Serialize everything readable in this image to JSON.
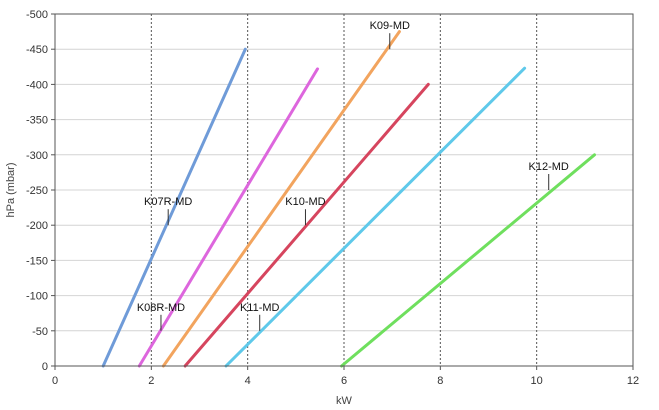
{
  "chart_data": {
    "type": "line",
    "title": "",
    "xlabel": "kW",
    "ylabel": "hPa (mbar)",
    "xlim": [
      0,
      12
    ],
    "ylim": [
      0,
      -500
    ],
    "x_ticks": [
      0,
      2,
      4,
      6,
      8,
      10,
      12
    ],
    "y_ticks": [
      0,
      -50,
      -100,
      -150,
      -200,
      -250,
      -300,
      -350,
      -400,
      -450,
      -500
    ],
    "grid": {
      "x": true,
      "y": true
    },
    "series": [
      {
        "name": "K07R-MD",
        "color": "#6f9bd8",
        "points": [
          [
            1.0,
            0
          ],
          [
            3.95,
            -450
          ]
        ],
        "label_at": [
          2.35,
          -200
        ],
        "label_pos": "above"
      },
      {
        "name": "K08R-MD",
        "color": "#dd66dd",
        "points": [
          [
            1.75,
            0
          ],
          [
            5.45,
            -422
          ]
        ],
        "label_at": [
          2.2,
          -50
        ],
        "label_pos": "above"
      },
      {
        "name": "K09-MD",
        "color": "#f2a45e",
        "points": [
          [
            2.25,
            0
          ],
          [
            7.15,
            -475
          ]
        ],
        "label_at": [
          6.95,
          -450
        ],
        "label_pos": "above"
      },
      {
        "name": "K10-MD",
        "color": "#d6455e",
        "points": [
          [
            2.7,
            0
          ],
          [
            7.75,
            -400
          ]
        ],
        "label_at": [
          5.2,
          -200
        ],
        "label_pos": "above"
      },
      {
        "name": "K11-MD",
        "color": "#5fc9ea",
        "points": [
          [
            3.55,
            0
          ],
          [
            9.75,
            -423
          ]
        ],
        "label_at": [
          4.25,
          -50
        ],
        "label_pos": "above"
      },
      {
        "name": "K12-MD",
        "color": "#6fdf5e",
        "points": [
          [
            5.95,
            0
          ],
          [
            11.2,
            -300
          ]
        ],
        "label_at": [
          10.25,
          -250
        ],
        "label_pos": "above"
      }
    ]
  }
}
